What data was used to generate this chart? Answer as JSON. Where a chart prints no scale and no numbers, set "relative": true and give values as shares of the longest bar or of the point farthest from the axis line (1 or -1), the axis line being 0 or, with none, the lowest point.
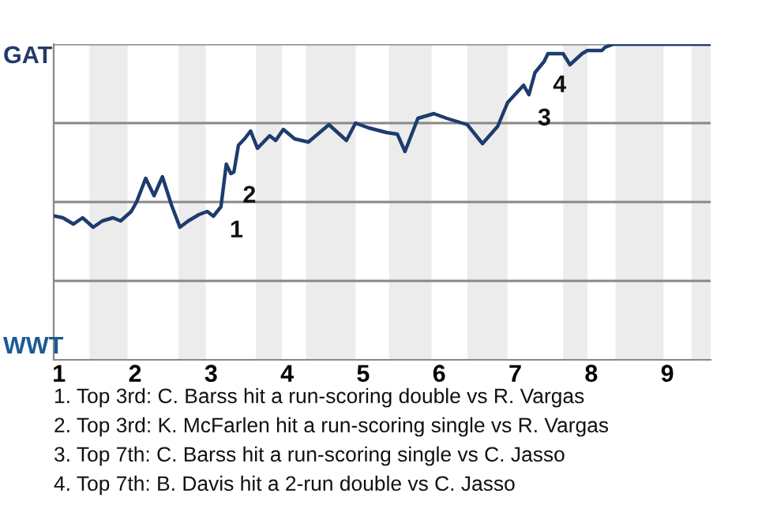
{
  "chart_data": {
    "type": "line",
    "relative": true,
    "x": [
      0.95,
      1.05,
      1.19,
      1.31,
      1.45,
      1.57,
      1.71,
      1.81,
      1.95,
      2.02,
      2.14,
      2.25,
      2.36,
      2.48,
      2.59,
      2.7,
      2.84,
      2.95,
      3.03,
      3.13,
      3.2,
      3.26,
      3.3,
      3.36,
      3.44,
      3.52,
      3.61,
      3.69,
      3.77,
      3.85,
      3.95,
      4.1,
      4.28,
      4.55,
      4.78,
      4.9,
      5.07,
      5.31,
      5.45,
      5.55,
      5.72,
      5.93,
      6.1,
      6.37,
      6.57,
      6.77,
      6.9,
      7.11,
      7.18,
      7.26,
      7.38,
      7.43,
      7.51,
      7.63,
      7.72,
      7.88,
      7.95,
      8.14,
      8.18,
      8.29,
      9.57
    ],
    "series": [
      {
        "color": "#1d3c6e",
        "values": [
          0.455,
          0.45,
          0.43,
          0.45,
          0.42,
          0.44,
          0.45,
          0.44,
          0.47,
          0.5,
          0.575,
          0.52,
          0.58,
          0.49,
          0.42,
          0.44,
          0.46,
          0.47,
          0.455,
          0.485,
          0.62,
          0.59,
          0.595,
          0.68,
          0.7,
          0.725,
          0.67,
          0.69,
          0.71,
          0.695,
          0.73,
          0.7,
          0.69,
          0.745,
          0.695,
          0.75,
          0.735,
          0.72,
          0.715,
          0.66,
          0.765,
          0.78,
          0.765,
          0.745,
          0.685,
          0.74,
          0.815,
          0.87,
          0.84,
          0.91,
          0.945,
          0.97,
          0.97,
          0.97,
          0.935,
          0.97,
          0.98,
          0.98,
          0.99,
          1.0,
          1.0
        ]
      }
    ],
    "xlim": [
      0.93,
      9.57
    ],
    "xticks": [
      1,
      2,
      3,
      4,
      5,
      6,
      7,
      8,
      9
    ],
    "bands": [
      {
        "axis": "x",
        "from": 1.4,
        "to": 1.9,
        "color": "#ececec"
      },
      {
        "axis": "x",
        "from": 2.57,
        "to": 2.93,
        "color": "#ececec"
      },
      {
        "axis": "x",
        "from": 3.59,
        "to": 3.93,
        "color": "#ececec"
      },
      {
        "axis": "x",
        "from": 4.25,
        "to": 4.9,
        "color": "#ececec"
      },
      {
        "axis": "x",
        "from": 5.34,
        "to": 5.9,
        "color": "#ececec"
      },
      {
        "axis": "x",
        "from": 6.37,
        "to": 6.9,
        "color": "#ececec"
      },
      {
        "axis": "x",
        "from": 7.63,
        "to": 7.95,
        "color": "#ececec"
      },
      {
        "axis": "x",
        "from": 8.32,
        "to": 8.95,
        "color": "#ececec"
      },
      {
        "axis": "x",
        "from": 9.32,
        "to": 9.57,
        "color": "#ececec"
      }
    ],
    "grid": "y",
    "line_style": "solid",
    "marker": "none",
    "annotations": [
      "GAT",
      "WWT",
      {
        "text": "1",
        "x": 3.13,
        "y": 0.485
      },
      {
        "text": "2",
        "x": 3.3,
        "y": 0.595
      },
      {
        "text": "3",
        "x": 7.18,
        "y": 0.84
      },
      {
        "text": "4",
        "x": 7.38,
        "y": 0.945
      },
      "1. Top 3rd: C. Barss hit a run-scoring double vs R. Vargas",
      "2. Top 3rd: K. McFarlen hit a run-scoring single vs R. Vargas",
      "3. Top 7th: C. Barss hit a run-scoring single vs C. Jasso",
      "4. Top 7th: B. Davis hit a 2-run double vs C. Jasso"
    ]
  }
}
